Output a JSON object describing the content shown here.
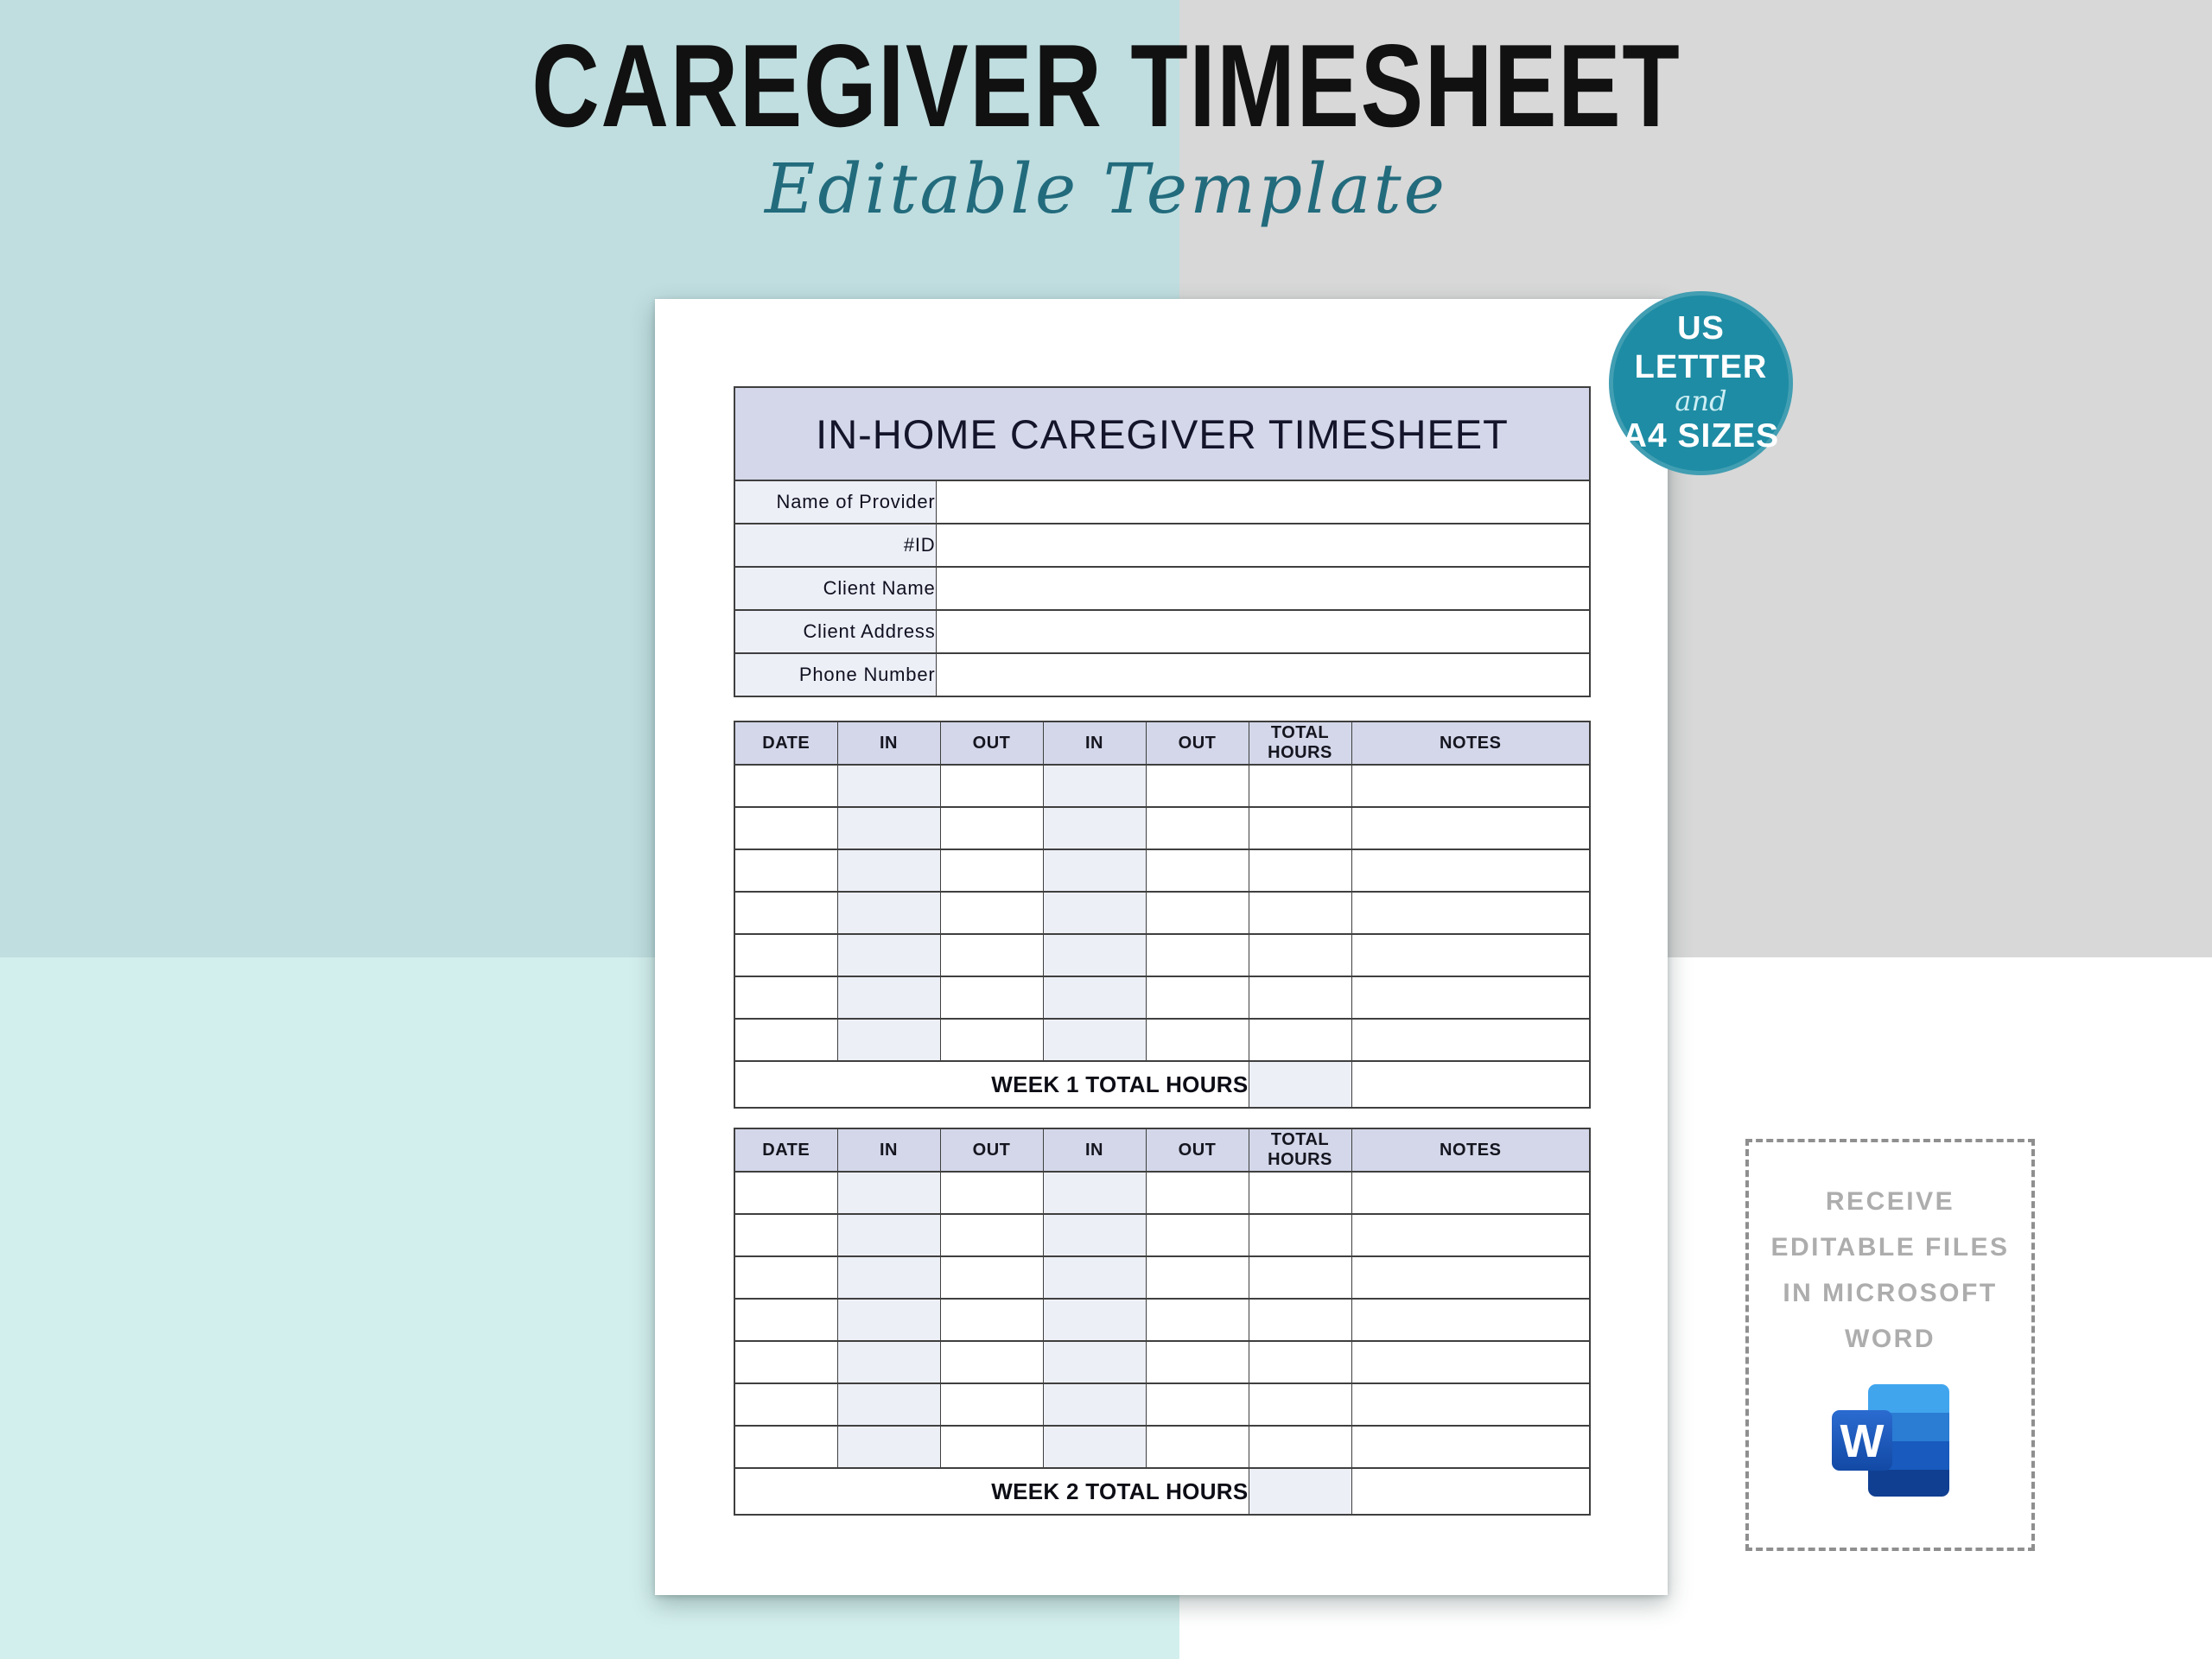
{
  "page_title": {
    "title": "CAREGIVER TIMESHEET",
    "subtitle": "Editable Template"
  },
  "size_badge": {
    "line1": "US",
    "line2": "LETTER",
    "line3": "and",
    "line4": "A4 SIZES"
  },
  "document": {
    "header": "IN-HOME CAREGIVER TIMESHEET",
    "info_labels": [
      "Name of Provider",
      "#ID",
      "Client Name",
      "Client Address",
      "Phone Number"
    ],
    "week_tables": [
      {
        "columns": [
          "DATE",
          "IN",
          "OUT",
          "IN",
          "OUT",
          "TOTAL HOURS",
          "NOTES"
        ],
        "blank_rows": 7,
        "total_label": "WEEK 1 TOTAL HOURS"
      },
      {
        "columns": [
          "DATE",
          "IN",
          "OUT",
          "IN",
          "OUT",
          "TOTAL HOURS",
          "NOTES"
        ],
        "blank_rows": 7,
        "total_label": "WEEK 2 TOTAL HOURS"
      }
    ]
  },
  "promo": {
    "lines": [
      "RECEIVE",
      "EDITABLE FILES",
      "IN MICROSOFT",
      "WORD"
    ],
    "icon": "microsoft-word-icon",
    "icon_letter": "W"
  },
  "colors": {
    "bg_top_left": "#c0dee0",
    "bg_top_right": "#d8d8d8",
    "bg_bottom_left": "#d3efed",
    "bg_bottom_right": "#ffffff",
    "title_text": "#111111",
    "script_text": "#226b7d",
    "badge_teal": "#1e8ca4",
    "table_header_fill": "#d3d7e9",
    "table_tint_fill": "#edeff7",
    "table_border": "#3f3f3f",
    "promo_text": "#adadad",
    "promo_border": "#8f8f8f",
    "word_blue_1": "#41a5ee",
    "word_blue_2": "#2b7cd3",
    "word_blue_3": "#185abd",
    "word_blue_4": "#103f91",
    "word_front_top": "#2b6bd0",
    "word_front_bottom": "#1249a5"
  }
}
